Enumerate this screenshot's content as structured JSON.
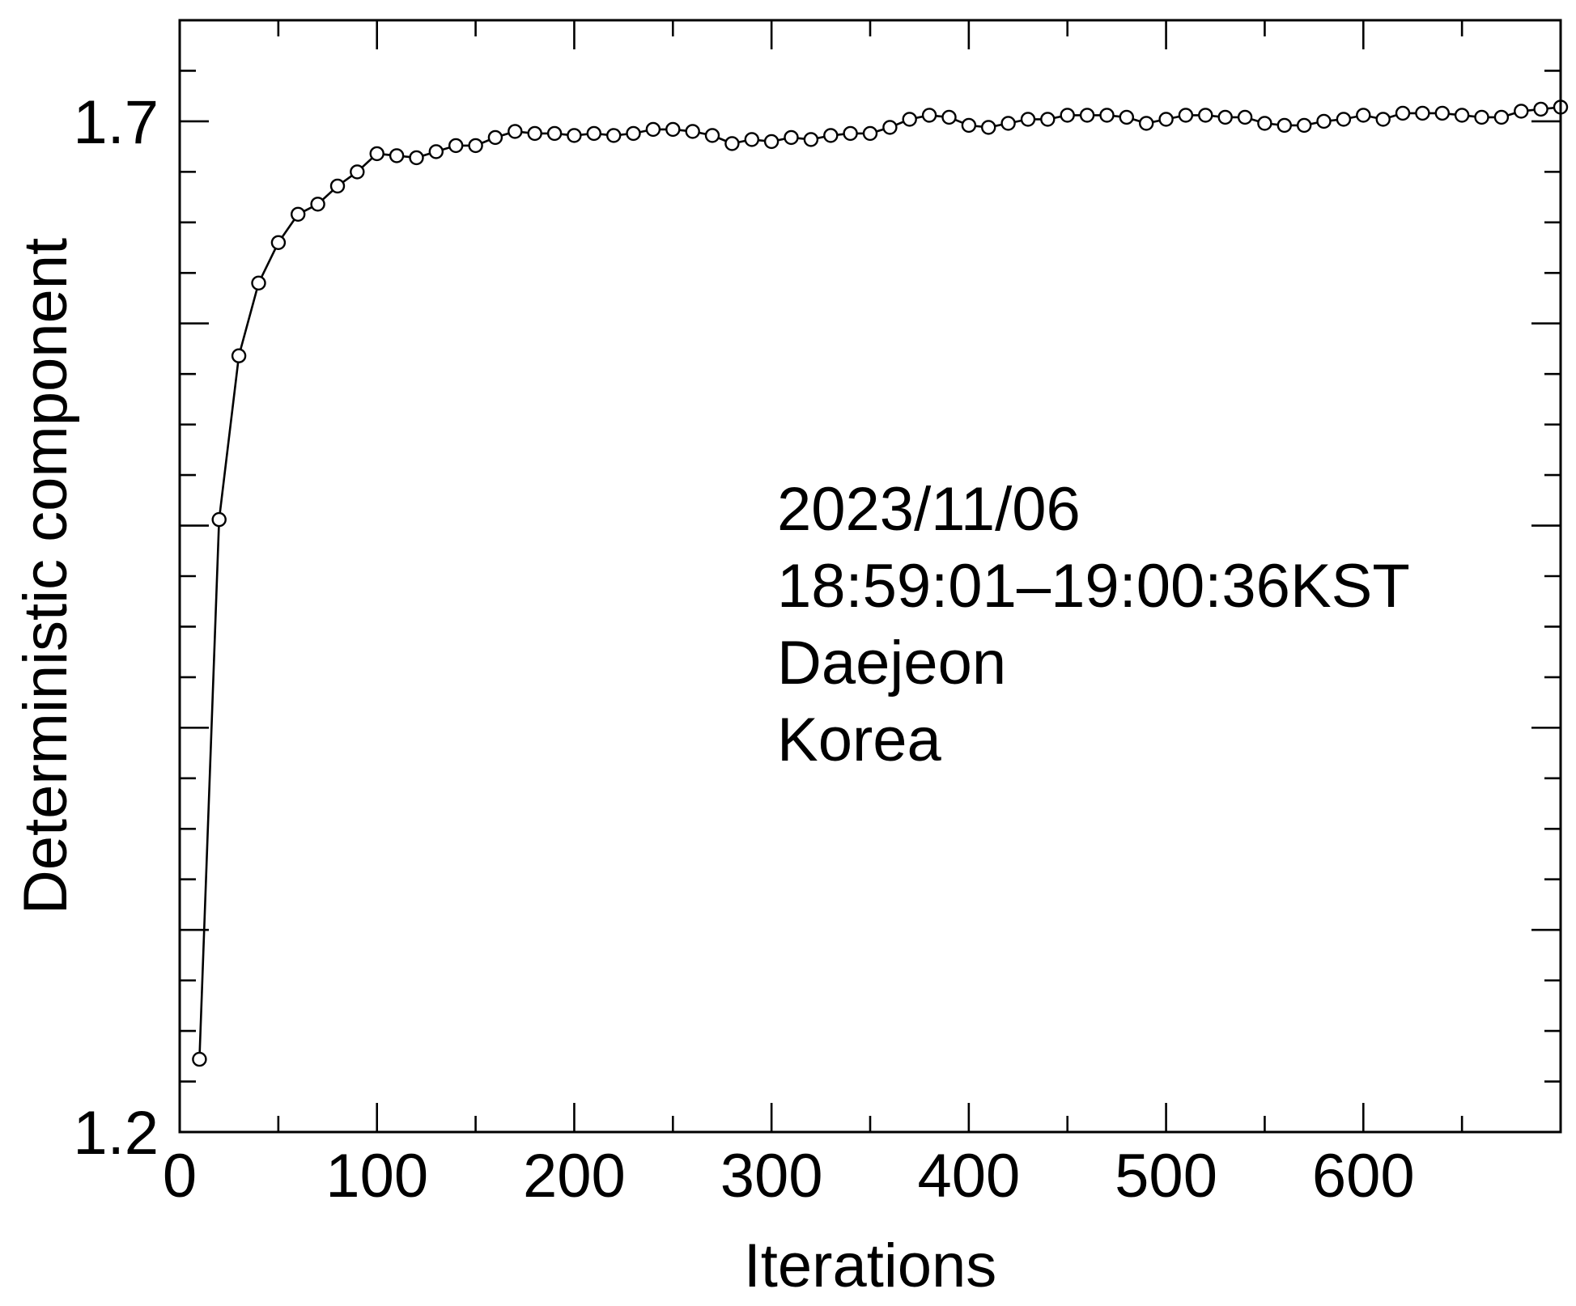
{
  "chart_data": {
    "type": "line",
    "title": "",
    "xlabel": "Iterations",
    "ylabel": "Deterministic component",
    "xlim": [
      0,
      700
    ],
    "ylim": [
      1.2,
      1.75
    ],
    "x_ticks": [
      0,
      100,
      200,
      300,
      400,
      500,
      600
    ],
    "y_ticks": [
      1.2,
      1.7
    ],
    "grid": false,
    "marker": "open-circle",
    "annotation": [
      "2023/11/06",
      "18:59:01–19:00:36KST",
      "Daejeon",
      "Korea"
    ],
    "series": [
      {
        "x": [
          10,
          20,
          30,
          40,
          50,
          60,
          70,
          80,
          90,
          100,
          110,
          120,
          130,
          140,
          150,
          160,
          170,
          180,
          190,
          200,
          210,
          220,
          230,
          240,
          250,
          260,
          270,
          280,
          290,
          300,
          310,
          320,
          330,
          340,
          350,
          360,
          370,
          380,
          390,
          400,
          410,
          420,
          430,
          440,
          450,
          460,
          470,
          480,
          490,
          500,
          510,
          520,
          530,
          540,
          550,
          560,
          570,
          580,
          590,
          600,
          610,
          620,
          630,
          640,
          650,
          660,
          670,
          680,
          690,
          700
        ],
        "values": [
          1.236,
          1.503,
          1.584,
          1.62,
          1.64,
          1.654,
          1.659,
          1.668,
          1.675,
          1.684,
          1.683,
          1.682,
          1.685,
          1.688,
          1.688,
          1.692,
          1.695,
          1.694,
          1.694,
          1.693,
          1.694,
          1.693,
          1.694,
          1.696,
          1.696,
          1.695,
          1.693,
          1.689,
          1.691,
          1.69,
          1.692,
          1.691,
          1.693,
          1.694,
          1.694,
          1.697,
          1.701,
          1.703,
          1.702,
          1.698,
          1.697,
          1.699,
          1.701,
          1.701,
          1.703,
          1.703,
          1.703,
          1.702,
          1.699,
          1.701,
          1.703,
          1.703,
          1.702,
          1.702,
          1.699,
          1.698,
          1.698,
          1.7,
          1.701,
          1.703,
          1.701,
          1.704,
          1.704,
          1.704,
          1.703,
          1.702,
          1.702,
          1.705,
          1.706,
          1.707
        ]
      }
    ]
  }
}
